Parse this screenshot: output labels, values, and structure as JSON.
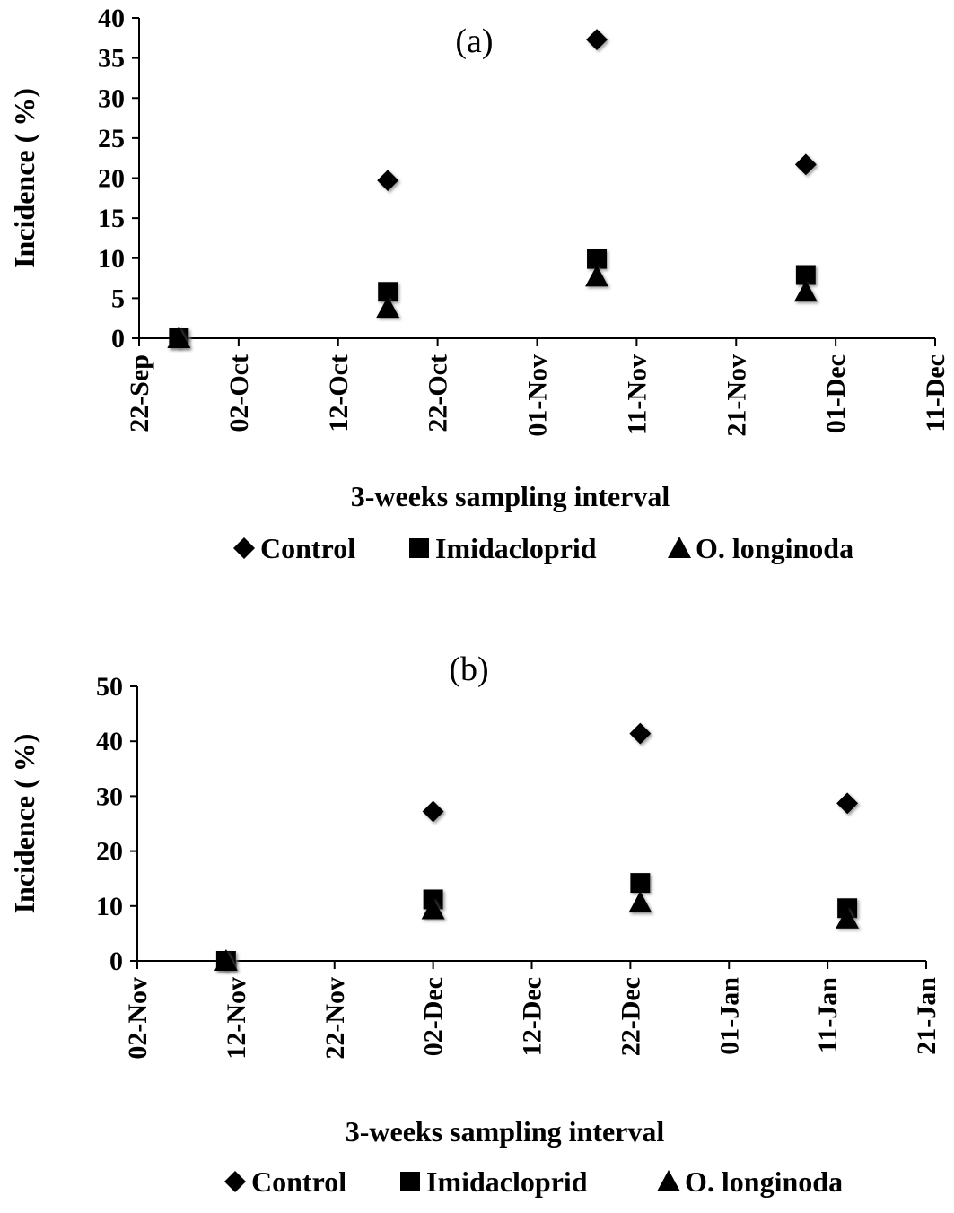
{
  "chart_data": [
    {
      "type": "scatter",
      "title": "(a)",
      "xlabel": "3-weeks  sampling interval",
      "ylabel": "Incidence ( %)",
      "x_ticks": [
        "22-Sep",
        "02-Oct",
        "12-Oct",
        "22-Oct",
        "01-Nov",
        "11-Nov",
        "21-Nov",
        "01-Dec",
        "11-Dec"
      ],
      "xlim": [
        "22-Sep",
        "11-Dec"
      ],
      "y_ticks": [
        0,
        5,
        10,
        15,
        20,
        25,
        30,
        35,
        40
      ],
      "ylim": [
        0,
        40
      ],
      "grid": false,
      "legend_position": "bottom",
      "series": [
        {
          "name": "Control",
          "marker": "diamond",
          "x": [
            "26-Sep",
            "17-Oct",
            "07-Nov",
            "28-Nov"
          ],
          "y": [
            0,
            19.7,
            37.3,
            21.7
          ]
        },
        {
          "name": "Imidacloprid",
          "marker": "square",
          "x": [
            "26-Sep",
            "17-Oct",
            "07-Nov",
            "28-Nov"
          ],
          "y": [
            0,
            5.8,
            9.9,
            7.9
          ]
        },
        {
          "name": "O. longinoda",
          "marker": "triangle",
          "x": [
            "26-Sep",
            "17-Oct",
            "07-Nov",
            "28-Nov"
          ],
          "y": [
            0,
            3.8,
            7.7,
            5.8
          ]
        }
      ]
    },
    {
      "type": "scatter",
      "title": "(b)",
      "xlabel": "3-weeks  sampling interval",
      "ylabel": "Incidence ( %)",
      "x_ticks": [
        "02-Nov",
        "12-Nov",
        "22-Nov",
        "02-Dec",
        "12-Dec",
        "22-Dec",
        "01-Jan",
        "11-Jan",
        "21-Jan"
      ],
      "xlim": [
        "02-Nov",
        "21-Jan"
      ],
      "y_ticks": [
        0,
        10,
        20,
        30,
        40,
        50
      ],
      "ylim": [
        0,
        50
      ],
      "grid": false,
      "legend_position": "bottom",
      "series": [
        {
          "name": "Control",
          "marker": "diamond",
          "x": [
            "11-Nov",
            "02-Dec",
            "23-Dec",
            "13-Jan"
          ],
          "y": [
            0,
            27.2,
            41.4,
            28.7
          ]
        },
        {
          "name": "Imidacloprid",
          "marker": "square",
          "x": [
            "11-Nov",
            "02-Dec",
            "23-Dec",
            "13-Jan"
          ],
          "y": [
            0,
            11.2,
            14.2,
            9.6
          ]
        },
        {
          "name": "O. longinoda",
          "marker": "triangle",
          "x": [
            "11-Nov",
            "02-Dec",
            "23-Dec",
            "13-Jan"
          ],
          "y": [
            0,
            9.4,
            10.6,
            7.7
          ]
        }
      ]
    }
  ]
}
